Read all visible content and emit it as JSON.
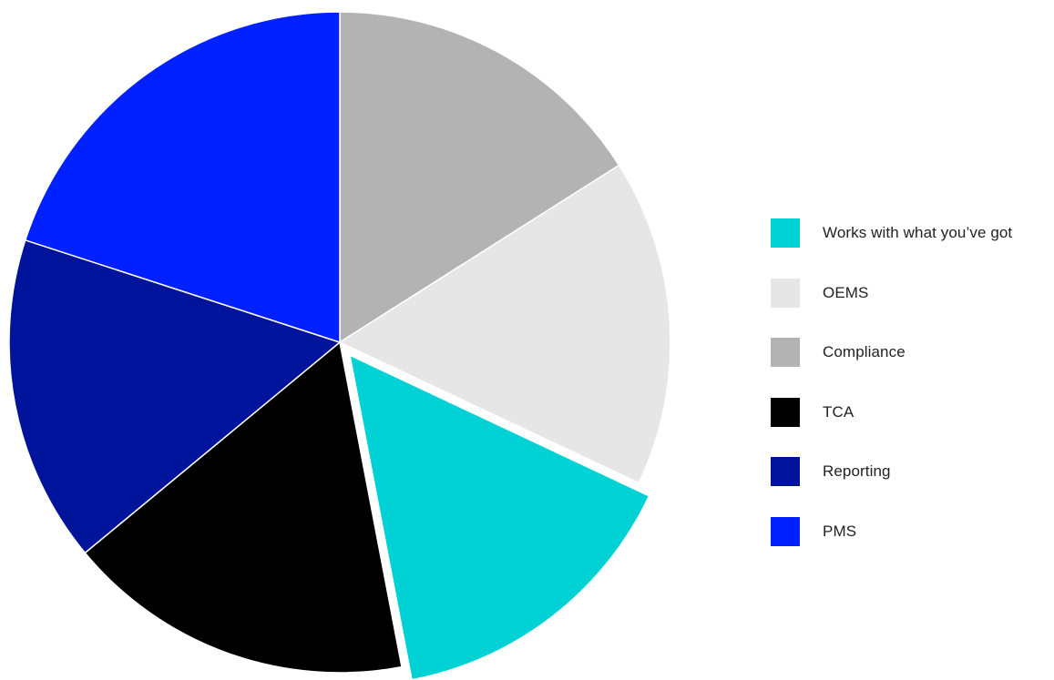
{
  "chart_data": {
    "type": "pie",
    "exploded": "Works with what you’ve got",
    "slices": [
      {
        "label": "Compliance",
        "value": 16,
        "color": "#b3b3b3"
      },
      {
        "label": "OEMS",
        "value": 16,
        "color": "#e6e6e6"
      },
      {
        "label": "Works with what you’ve got",
        "value": 15,
        "color": "#00d1d4"
      },
      {
        "label": "TCA",
        "value": 17,
        "color": "#000000"
      },
      {
        "label": "Reporting",
        "value": 16,
        "color": "#00149b"
      },
      {
        "label": "PMS",
        "value": 20,
        "color": "#0021ff"
      }
    ],
    "legend": {
      "placement": "right",
      "items": [
        {
          "label": "Works with what you’ve got",
          "color": "#00d1d4"
        },
        {
          "label": "OEMS",
          "color": "#e6e6e6"
        },
        {
          "label": "Compliance",
          "color": "#b3b3b3"
        },
        {
          "label": "TCA",
          "color": "#000000"
        },
        {
          "label": "Reporting",
          "color": "#00149b"
        },
        {
          "label": "PMS",
          "color": "#0021ff"
        }
      ]
    }
  }
}
